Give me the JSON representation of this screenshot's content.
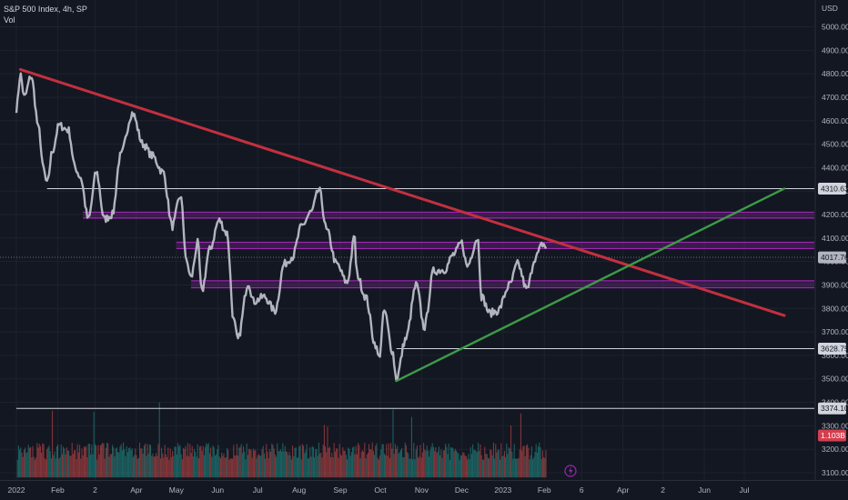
{
  "header": {
    "title": "S&P 500 Index, 4h, SP",
    "volume_label": "Vol"
  },
  "chart_data": {
    "type": "line",
    "title": "S&P 500 Index, 4h, SP",
    "currency": "USD",
    "ylim": [
      3080,
      5080
    ],
    "y_ticks": [
      3100,
      3200,
      3300,
      3400,
      3500,
      3600,
      3700,
      3800,
      3900,
      4000,
      4100,
      4200,
      4300,
      4400,
      4500,
      4600,
      4700,
      4800,
      4900,
      5000
    ],
    "y_tick_labels": [
      "3100.00",
      "3200.00",
      "3300.00",
      "3400.00",
      "3500.00",
      "3600.00",
      "3700.00",
      "3800.00",
      "3900.00",
      "4000.00",
      "4100.00",
      "4200.00",
      "4300.00",
      "4400.00",
      "4500.00",
      "4600.00",
      "4700.00",
      "4800.00",
      "4900.00",
      "5000.00"
    ],
    "x_axis_labels": [
      {
        "label": "2022",
        "date": "2022-01-01"
      },
      {
        "label": "Feb",
        "date": "2022-02-01"
      },
      {
        "label": "2",
        "date": "2022-03-01"
      },
      {
        "label": "Apr",
        "date": "2022-04-01"
      },
      {
        "label": "May",
        "date": "2022-05-01"
      },
      {
        "label": "Jun",
        "date": "2022-06-01"
      },
      {
        "label": "Jul",
        "date": "2022-07-01"
      },
      {
        "label": "Aug",
        "date": "2022-08-01"
      },
      {
        "label": "Sep",
        "date": "2022-09-01"
      },
      {
        "label": "Oct",
        "date": "2022-10-01"
      },
      {
        "label": "Nov",
        "date": "2022-11-01"
      },
      {
        "label": "Dec",
        "date": "2022-12-01"
      },
      {
        "label": "2023",
        "date": "2023-01-01"
      },
      {
        "label": "Feb",
        "date": "2023-02-01"
      },
      {
        "label": "6",
        "date": "2023-03-01"
      },
      {
        "label": "Apr",
        "date": "2023-04-01"
      },
      {
        "label": "2",
        "date": "2023-05-01"
      },
      {
        "label": "Jun",
        "date": "2023-06-01"
      },
      {
        "label": "Jul",
        "date": "2023-07-01"
      }
    ],
    "price_series": {
      "color": "#b2b5be",
      "points": [
        [
          "2022-01-01",
          4650
        ],
        [
          "2022-01-04",
          4796
        ],
        [
          "2022-01-07",
          4700
        ],
        [
          "2022-01-12",
          4790
        ],
        [
          "2022-01-18",
          4560
        ],
        [
          "2022-01-21",
          4400
        ],
        [
          "2022-01-24",
          4330
        ],
        [
          "2022-01-28",
          4470
        ],
        [
          "2022-02-02",
          4580
        ],
        [
          "2022-02-09",
          4560
        ],
        [
          "2022-02-14",
          4400
        ],
        [
          "2022-02-18",
          4360
        ],
        [
          "2022-02-24",
          4180
        ],
        [
          "2022-03-02",
          4380
        ],
        [
          "2022-03-08",
          4180
        ],
        [
          "2022-03-14",
          4200
        ],
        [
          "2022-03-20",
          4450
        ],
        [
          "2022-03-29",
          4632
        ],
        [
          "2022-04-06",
          4500
        ],
        [
          "2022-04-13",
          4450
        ],
        [
          "2022-04-21",
          4380
        ],
        [
          "2022-04-28",
          4150
        ],
        [
          "2022-05-04",
          4280
        ],
        [
          "2022-05-09",
          3990
        ],
        [
          "2022-05-12",
          3930
        ],
        [
          "2022-05-17",
          4080
        ],
        [
          "2022-05-20",
          3870
        ],
        [
          "2022-05-26",
          4050
        ],
        [
          "2022-06-02",
          4175
        ],
        [
          "2022-06-08",
          4120
        ],
        [
          "2022-06-13",
          3750
        ],
        [
          "2022-06-16",
          3666
        ],
        [
          "2022-06-24",
          3910
        ],
        [
          "2022-06-28",
          3830
        ],
        [
          "2022-07-06",
          3850
        ],
        [
          "2022-07-14",
          3790
        ],
        [
          "2022-07-21",
          3990
        ],
        [
          "2022-07-27",
          4020
        ],
        [
          "2022-08-03",
          4150
        ],
        [
          "2022-08-10",
          4210
        ],
        [
          "2022-08-16",
          4305
        ],
        [
          "2022-08-22",
          4130
        ],
        [
          "2022-08-29",
          3990
        ],
        [
          "2022-09-06",
          3910
        ],
        [
          "2022-09-12",
          4110
        ],
        [
          "2022-09-13",
          3950
        ],
        [
          "2022-09-20",
          3850
        ],
        [
          "2022-09-27",
          3650
        ],
        [
          "2022-09-30",
          3590
        ],
        [
          "2022-10-04",
          3790
        ],
        [
          "2022-10-10",
          3620
        ],
        [
          "2022-10-13",
          3500
        ],
        [
          "2022-10-20",
          3670
        ],
        [
          "2022-10-28",
          3900
        ],
        [
          "2022-11-03",
          3720
        ],
        [
          "2022-11-10",
          3960
        ],
        [
          "2022-11-18",
          3965
        ],
        [
          "2022-11-25",
          4030
        ],
        [
          "2022-12-01",
          4080
        ],
        [
          "2022-12-05",
          3980
        ],
        [
          "2022-12-13",
          4100
        ],
        [
          "2022-12-16",
          3850
        ],
        [
          "2022-12-22",
          3780
        ],
        [
          "2022-12-28",
          3790
        ],
        [
          "2023-01-06",
          3900
        ],
        [
          "2023-01-12",
          3990
        ],
        [
          "2023-01-19",
          3880
        ],
        [
          "2023-01-25",
          4015
        ],
        [
          "2023-01-31",
          4075
        ],
        [
          "2023-02-03",
          4055
        ]
      ]
    },
    "trendlines": [
      {
        "name": "descending",
        "color": "#c2303f",
        "from": [
          "2022-01-04",
          4818
        ],
        "to": [
          "2023-07-31",
          3770
        ]
      },
      {
        "name": "ascending",
        "color": "#3c9b46",
        "from": [
          "2022-10-13",
          3491
        ],
        "to": [
          "2023-07-31",
          4310.63
        ]
      }
    ],
    "horizontal_lines": [
      {
        "price": 4310.63,
        "label": "4310.63",
        "color": "#d1d4dc",
        "from": "2022-01-24"
      },
      {
        "price": 3628.75,
        "label": "3628.75",
        "color": "#d1d4dc",
        "from": "2022-10-13"
      },
      {
        "price": 3374.1,
        "label": "3374.10",
        "color": "#d1d4dc",
        "from": "2022-01-01"
      }
    ],
    "zones": [
      {
        "low": 4185,
        "high": 4210,
        "color": "#9c27b0",
        "from": "2022-02-20"
      },
      {
        "low": 4055,
        "high": 4082,
        "color": "#9c27b0",
        "from": "2022-05-01"
      },
      {
        "low": 3888,
        "high": 3918,
        "color": "#9c27b0",
        "from": "2022-05-12"
      }
    ],
    "last_price": {
      "value": 4017.76,
      "label": "4017.76"
    },
    "volume": {
      "label": "Vol",
      "value_label": "1.103B",
      "up_color": "#26a69a",
      "down_color": "#ef5350",
      "base_price": 3080,
      "max_price": 3420
    }
  }
}
